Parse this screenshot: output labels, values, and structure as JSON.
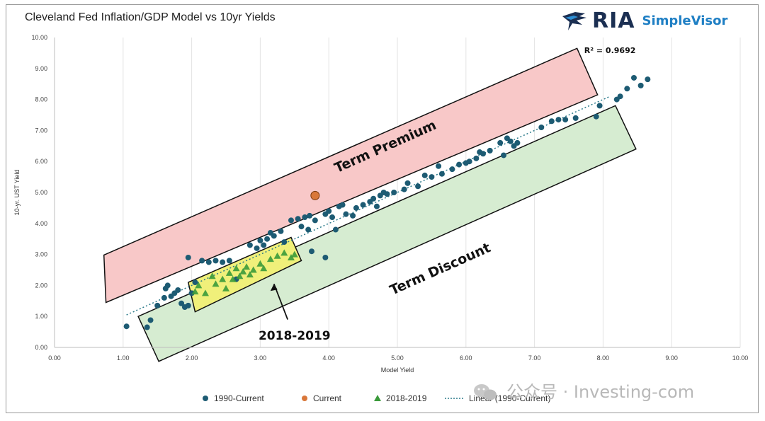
{
  "header": {
    "title": "Cleveland Fed Inflation/GDP Model vs 10yr Yields",
    "logo_main": "RIA",
    "logo_sub": "SimpleVisor"
  },
  "watermark": "公众号 · Investing-com",
  "colors": {
    "dot_1990": "#1d5b73",
    "dot_current": "#d9773a",
    "tri_2018": "#3a9a3a",
    "trend": "#2b7a8a",
    "term_premium_fill": "#f8c8c8",
    "term_discount_fill": "#d6ecd1",
    "highlight_fill": "#f0f07a"
  },
  "chart_data": {
    "type": "scatter",
    "title": "Cleveland Fed Inflation/GDP Model vs 10yr Yields",
    "xlabel": "Model Yield",
    "ylabel": "10-yr. UST Yield",
    "xlim": [
      0,
      10
    ],
    "ylim": [
      0,
      10
    ],
    "x_ticks": [
      "0.00",
      "1.00",
      "2.00",
      "3.00",
      "4.00",
      "5.00",
      "6.00",
      "7.00",
      "8.00",
      "9.00",
      "10.00"
    ],
    "y_ticks": [
      "0.00",
      "1.00",
      "2.00",
      "3.00",
      "4.00",
      "5.00",
      "6.00",
      "7.00",
      "8.00",
      "9.00",
      "10.00"
    ],
    "grid": "vertical",
    "legend_position": "bottom",
    "r_squared_label": "R² = 0.9692",
    "annotations": {
      "term_premium": "Term Premium",
      "term_discount": "Term Discount",
      "period_label": "2018-2019"
    },
    "series": [
      {
        "name": "1990-Current",
        "marker": "circle",
        "points": [
          [
            1.05,
            0.68
          ],
          [
            1.35,
            0.65
          ],
          [
            1.4,
            0.88
          ],
          [
            1.5,
            1.35
          ],
          [
            1.6,
            1.6
          ],
          [
            1.62,
            1.9
          ],
          [
            1.65,
            2.0
          ],
          [
            1.7,
            1.65
          ],
          [
            1.75,
            1.75
          ],
          [
            1.8,
            1.85
          ],
          [
            1.85,
            1.42
          ],
          [
            1.9,
            1.3
          ],
          [
            1.95,
            1.35
          ],
          [
            1.95,
            2.9
          ],
          [
            2.0,
            1.75
          ],
          [
            2.05,
            2.1
          ],
          [
            2.15,
            2.8
          ],
          [
            2.25,
            2.75
          ],
          [
            2.35,
            2.8
          ],
          [
            2.45,
            2.75
          ],
          [
            2.55,
            2.8
          ],
          [
            2.65,
            2.2
          ],
          [
            2.85,
            3.3
          ],
          [
            2.95,
            3.2
          ],
          [
            3.0,
            3.45
          ],
          [
            3.05,
            3.3
          ],
          [
            3.1,
            3.5
          ],
          [
            3.15,
            3.7
          ],
          [
            3.2,
            3.6
          ],
          [
            3.3,
            3.75
          ],
          [
            3.35,
            3.4
          ],
          [
            3.45,
            4.1
          ],
          [
            3.55,
            4.15
          ],
          [
            3.6,
            3.9
          ],
          [
            3.65,
            4.2
          ],
          [
            3.7,
            3.8
          ],
          [
            3.72,
            4.25
          ],
          [
            3.75,
            3.1
          ],
          [
            3.8,
            4.1
          ],
          [
            3.95,
            2.9
          ],
          [
            3.95,
            4.3
          ],
          [
            4.0,
            4.4
          ],
          [
            4.05,
            4.2
          ],
          [
            4.1,
            3.8
          ],
          [
            4.15,
            4.55
          ],
          [
            4.2,
            4.6
          ],
          [
            4.25,
            4.3
          ],
          [
            4.35,
            4.25
          ],
          [
            4.4,
            4.5
          ],
          [
            4.5,
            4.6
          ],
          [
            4.6,
            4.7
          ],
          [
            4.65,
            4.8
          ],
          [
            4.7,
            4.55
          ],
          [
            4.75,
            4.9
          ],
          [
            4.8,
            5.0
          ],
          [
            4.85,
            4.95
          ],
          [
            4.95,
            5.0
          ],
          [
            5.1,
            5.1
          ],
          [
            5.15,
            5.3
          ],
          [
            5.3,
            5.2
          ],
          [
            5.4,
            5.55
          ],
          [
            5.5,
            5.5
          ],
          [
            5.6,
            5.85
          ],
          [
            5.65,
            5.6
          ],
          [
            5.8,
            5.75
          ],
          [
            5.9,
            5.9
          ],
          [
            6.0,
            5.95
          ],
          [
            6.05,
            6.0
          ],
          [
            6.15,
            6.1
          ],
          [
            6.2,
            6.3
          ],
          [
            6.25,
            6.25
          ],
          [
            6.35,
            6.35
          ],
          [
            6.5,
            6.6
          ],
          [
            6.55,
            6.2
          ],
          [
            6.6,
            6.75
          ],
          [
            6.65,
            6.65
          ],
          [
            6.7,
            6.5
          ],
          [
            6.75,
            6.6
          ],
          [
            7.1,
            7.1
          ],
          [
            7.25,
            7.3
          ],
          [
            7.35,
            7.35
          ],
          [
            7.45,
            7.35
          ],
          [
            7.6,
            7.4
          ],
          [
            7.9,
            7.45
          ],
          [
            7.95,
            7.8
          ],
          [
            8.2,
            8.0
          ],
          [
            8.25,
            8.1
          ],
          [
            8.35,
            8.35
          ],
          [
            8.45,
            8.7
          ],
          [
            8.55,
            8.45
          ],
          [
            8.65,
            8.65
          ]
        ]
      },
      {
        "name": "Current",
        "marker": "circle",
        "points": [
          [
            3.8,
            4.9
          ]
        ]
      },
      {
        "name": "2018-2019",
        "marker": "triangle",
        "points": [
          [
            2.05,
            1.8
          ],
          [
            2.1,
            2.0
          ],
          [
            2.2,
            1.75
          ],
          [
            2.3,
            2.3
          ],
          [
            2.35,
            2.05
          ],
          [
            2.45,
            2.2
          ],
          [
            2.5,
            1.9
          ],
          [
            2.55,
            2.4
          ],
          [
            2.6,
            2.2
          ],
          [
            2.65,
            2.55
          ],
          [
            2.7,
            2.3
          ],
          [
            2.75,
            2.45
          ],
          [
            2.8,
            2.6
          ],
          [
            2.85,
            2.35
          ],
          [
            2.9,
            2.5
          ],
          [
            3.0,
            2.7
          ],
          [
            3.05,
            2.55
          ],
          [
            3.15,
            2.85
          ],
          [
            3.25,
            2.95
          ],
          [
            3.35,
            3.05
          ],
          [
            3.45,
            2.9
          ],
          [
            3.5,
            3.0
          ]
        ]
      }
    ],
    "trendline": {
      "name": "Linear (1990-Current)",
      "from": [
        1.05,
        1.05
      ],
      "to": [
        8.1,
        8.1
      ]
    }
  }
}
